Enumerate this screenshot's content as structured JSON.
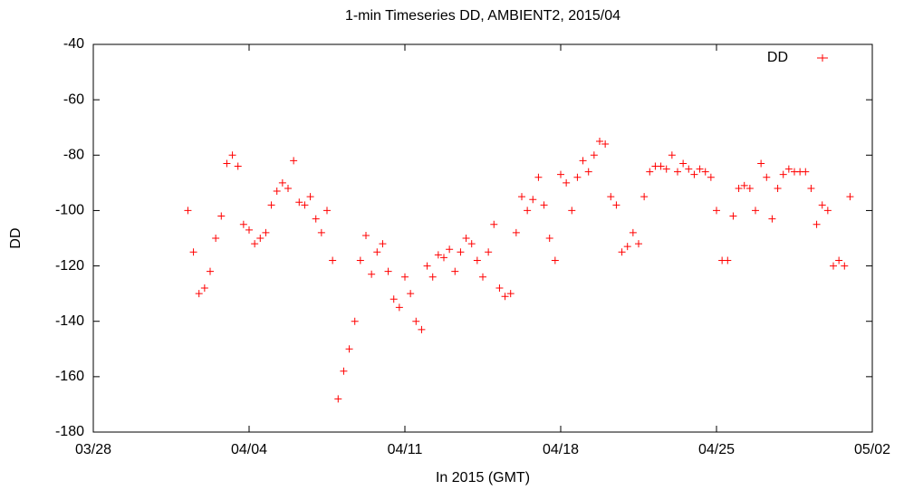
{
  "chart_data": {
    "type": "scatter",
    "title": "1-min Timeseries DD, AMBIENT2, 2015/04",
    "xlabel": "In 2015 (GMT)",
    "ylabel": "DD",
    "legend": "top-right",
    "xlim": [
      "2015-03-28 00:00",
      "2015-05-02 00:00"
    ],
    "xticks": [
      {
        "value": "2015-03-28 00:00",
        "label": "03/28"
      },
      {
        "value": "2015-04-04 00:00",
        "label": "04/04"
      },
      {
        "value": "2015-04-11 00:00",
        "label": "04/11"
      },
      {
        "value": "2015-04-18 00:00",
        "label": "04/18"
      },
      {
        "value": "2015-04-25 00:00",
        "label": "04/25"
      },
      {
        "value": "2015-05-02 00:00",
        "label": "05/02"
      }
    ],
    "ylim": [
      -180,
      -40
    ],
    "yticks": [
      -180,
      -160,
      -140,
      -120,
      -100,
      -80,
      -60,
      -40
    ],
    "x": [
      "2015-04-01 06:00",
      "2015-04-01 12:00",
      "2015-04-01 18:00",
      "2015-04-02 00:00",
      "2015-04-02 06:00",
      "2015-04-02 12:00",
      "2015-04-02 18:00",
      "2015-04-03 00:00",
      "2015-04-03 06:00",
      "2015-04-03 12:00",
      "2015-04-03 18:00",
      "2015-04-04 00:00",
      "2015-04-04 06:00",
      "2015-04-04 12:00",
      "2015-04-04 18:00",
      "2015-04-05 00:00",
      "2015-04-05 06:00",
      "2015-04-05 12:00",
      "2015-04-05 18:00",
      "2015-04-06 00:00",
      "2015-04-06 06:00",
      "2015-04-06 12:00",
      "2015-04-06 18:00",
      "2015-04-07 00:00",
      "2015-04-07 06:00",
      "2015-04-07 12:00",
      "2015-04-07 18:00",
      "2015-04-08 00:00",
      "2015-04-08 06:00",
      "2015-04-08 12:00",
      "2015-04-08 18:00",
      "2015-04-09 00:00",
      "2015-04-09 06:00",
      "2015-04-09 12:00",
      "2015-04-09 18:00",
      "2015-04-10 00:00",
      "2015-04-10 06:00",
      "2015-04-10 12:00",
      "2015-04-10 18:00",
      "2015-04-11 00:00",
      "2015-04-11 06:00",
      "2015-04-11 12:00",
      "2015-04-11 18:00",
      "2015-04-12 00:00",
      "2015-04-12 06:00",
      "2015-04-12 12:00",
      "2015-04-12 18:00",
      "2015-04-13 00:00",
      "2015-04-13 06:00",
      "2015-04-13 12:00",
      "2015-04-13 18:00",
      "2015-04-14 00:00",
      "2015-04-14 06:00",
      "2015-04-14 12:00",
      "2015-04-14 18:00",
      "2015-04-15 00:00",
      "2015-04-15 06:00",
      "2015-04-15 12:00",
      "2015-04-15 18:00",
      "2015-04-16 00:00",
      "2015-04-16 06:00",
      "2015-04-16 12:00",
      "2015-04-16 18:00",
      "2015-04-17 00:00",
      "2015-04-17 06:00",
      "2015-04-17 12:00",
      "2015-04-17 18:00",
      "2015-04-18 00:00",
      "2015-04-18 06:00",
      "2015-04-18 12:00",
      "2015-04-18 18:00",
      "2015-04-19 00:00",
      "2015-04-19 06:00",
      "2015-04-19 12:00",
      "2015-04-19 18:00",
      "2015-04-20 00:00",
      "2015-04-20 06:00",
      "2015-04-20 12:00",
      "2015-04-20 18:00",
      "2015-04-21 00:00",
      "2015-04-21 06:00",
      "2015-04-21 12:00",
      "2015-04-21 18:00",
      "2015-04-22 00:00",
      "2015-04-22 06:00",
      "2015-04-22 12:00",
      "2015-04-22 18:00",
      "2015-04-23 00:00",
      "2015-04-23 06:00",
      "2015-04-23 12:00",
      "2015-04-23 18:00",
      "2015-04-24 00:00",
      "2015-04-24 06:00",
      "2015-04-24 12:00",
      "2015-04-24 18:00",
      "2015-04-25 00:00",
      "2015-04-25 06:00",
      "2015-04-25 12:00",
      "2015-04-25 18:00",
      "2015-04-26 00:00",
      "2015-04-26 06:00",
      "2015-04-26 12:00",
      "2015-04-26 18:00",
      "2015-04-27 00:00",
      "2015-04-27 06:00",
      "2015-04-27 12:00",
      "2015-04-27 18:00",
      "2015-04-28 00:00",
      "2015-04-28 06:00",
      "2015-04-28 12:00",
      "2015-04-28 18:00",
      "2015-04-29 00:00",
      "2015-04-29 06:00",
      "2015-04-29 12:00",
      "2015-04-29 18:00",
      "2015-04-30 00:00",
      "2015-04-30 06:00",
      "2015-04-30 12:00",
      "2015-04-30 18:00",
      "2015-05-01 00:00"
    ],
    "series": [
      {
        "name": "DD",
        "color": "#ff0000",
        "values": [
          -100,
          -115,
          -130,
          -128,
          -122,
          -110,
          -102,
          -83,
          -80,
          -84,
          -105,
          -107,
          -112,
          -110,
          -108,
          -98,
          -93,
          -90,
          -92,
          -82,
          -97,
          -98,
          -95,
          -103,
          -108,
          -100,
          -118,
          -168,
          -158,
          -150,
          -140,
          -118,
          -109,
          -123,
          -115,
          -112,
          -122,
          -132,
          -135,
          -124,
          -130,
          -140,
          -143,
          -120,
          -124,
          -116,
          -117,
          -114,
          -122,
          -115,
          -110,
          -112,
          -118,
          -124,
          -115,
          -105,
          -128,
          -131,
          -130,
          -108,
          -95,
          -100,
          -96,
          -88,
          -98,
          -110,
          -118,
          -87,
          -90,
          -100,
          -88,
          -82,
          -86,
          -80,
          -75,
          -76,
          -95,
          -98,
          -115,
          -113,
          -108,
          -112,
          -95,
          -86,
          -84,
          -84,
          -85,
          -80,
          -86,
          -83,
          -85,
          -87,
          -85,
          -86,
          -88,
          -100,
          -118,
          -118,
          -102,
          -92,
          -91,
          -92,
          -100,
          -83,
          -88,
          -103,
          -92,
          -87,
          -85,
          -86,
          -86,
          -86,
          -92,
          -105,
          -98,
          -100,
          -120,
          -118,
          -120,
          -95
        ]
      }
    ]
  }
}
